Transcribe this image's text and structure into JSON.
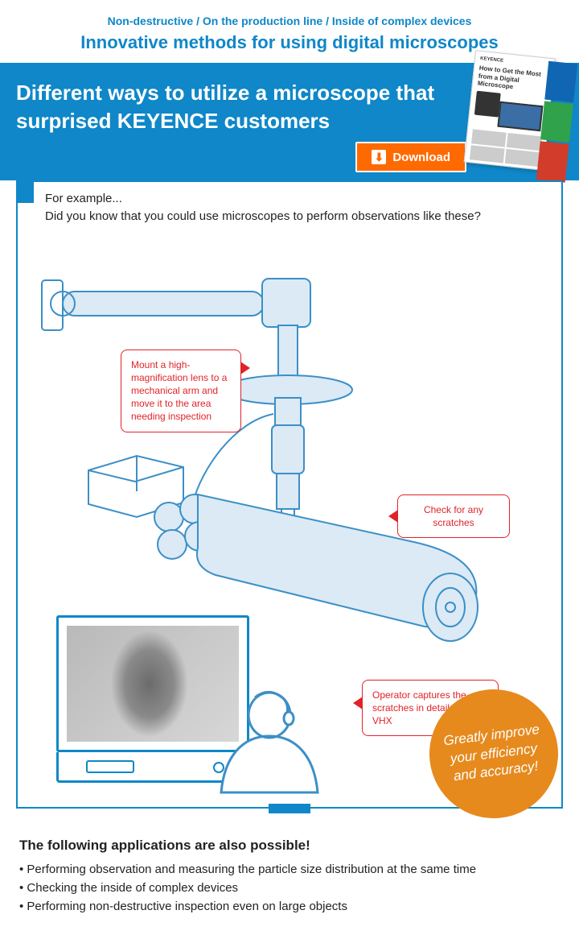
{
  "colors": {
    "brand_blue": "#0f87c8",
    "callout_red": "#e12329",
    "download_orange": "#ff6a00",
    "badge_orange": "#e68a1e",
    "line_blue": "#3c8fc7",
    "fill_blue": "#dbeaf5",
    "light_glow": "#f7d15a"
  },
  "header": {
    "tagline": "Non-destructive / On the production line / Inside of complex devices",
    "title": "Innovative methods for using digital microscopes"
  },
  "banner": {
    "title": "Different ways to utilize a microscope that surprised KEYENCE customers",
    "download_label": "Download",
    "brochure_brand": "KEYENCE",
    "brochure_title": "How to Get the Most from a Digital Microscope"
  },
  "diagram": {
    "lead_1": "For example...",
    "lead_2": "Did you know that you could use microscopes to perform observations like these?",
    "callout1": "Mount a high-magnification lens to a mechanical arm and move it to the area needing inspection",
    "callout2": "Check for any scratches",
    "callout3": "Operator captures the scratches in detail on the VHX",
    "badge": "Greatly improve your efficiency and accuracy!"
  },
  "footer": {
    "heading": "The following applications are also possible!",
    "items": [
      "Performing observation and measuring the particle size distribution at the same time",
      "Checking the inside of complex devices",
      "Performing non-destructive inspection even on large objects"
    ]
  }
}
